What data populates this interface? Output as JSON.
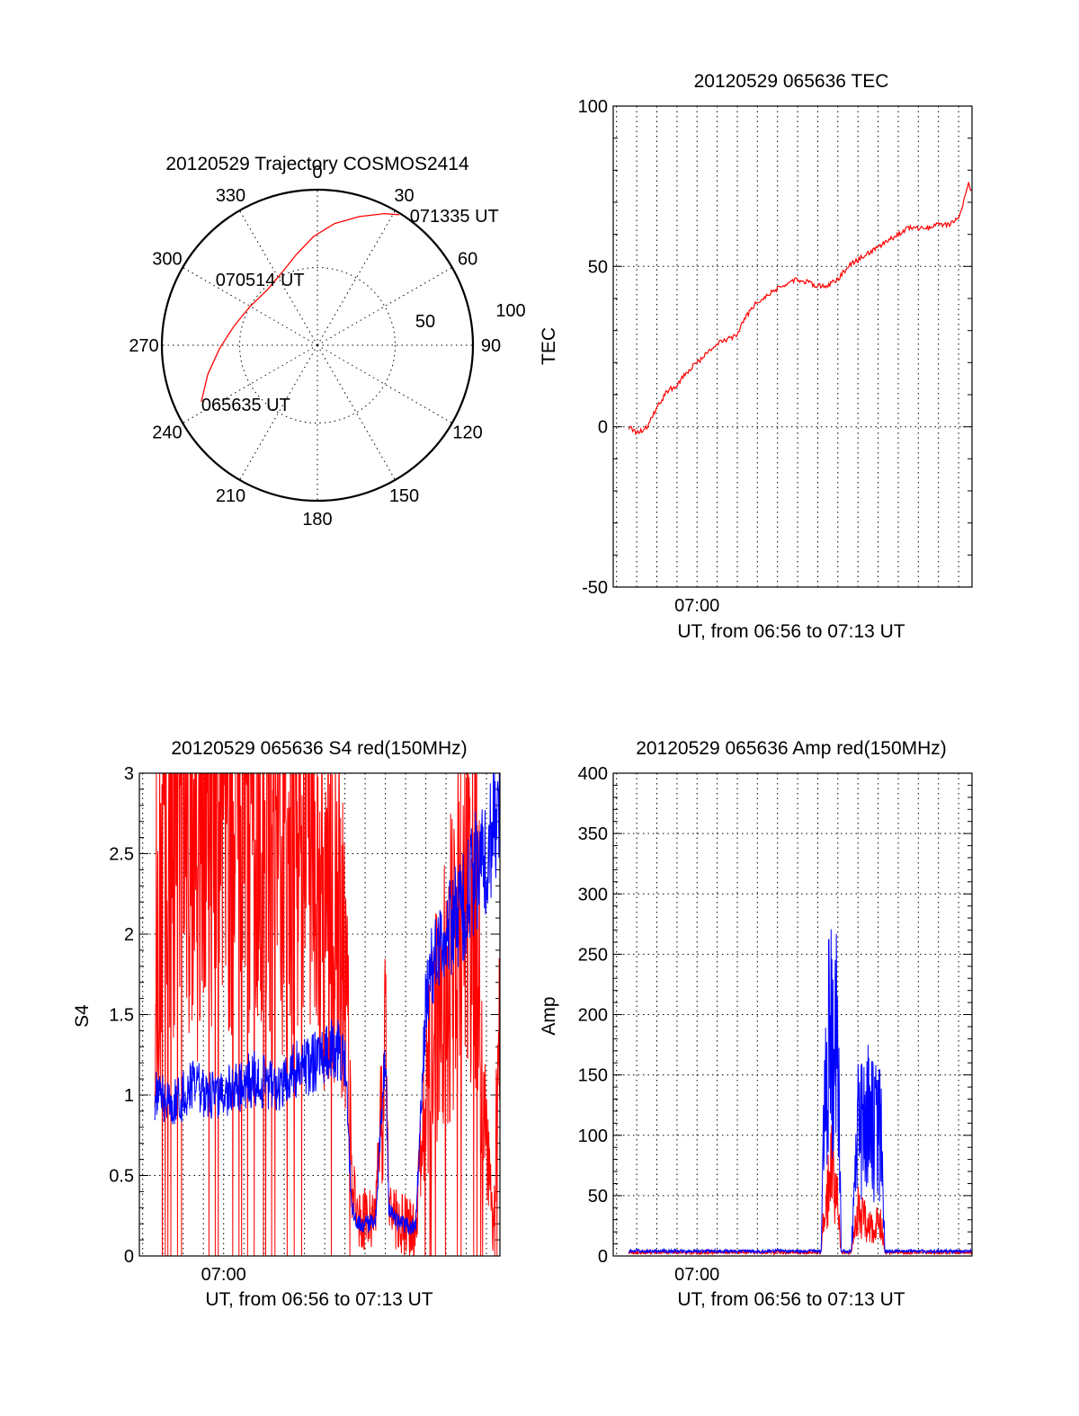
{
  "chart_data": [
    {
      "id": "trajectory",
      "type": "polar",
      "title": "20120529 Trajectory COSMOS2414",
      "azimuth_labels": [
        "0",
        "30",
        "60",
        "90",
        "120",
        "150",
        "180",
        "210",
        "240",
        "270",
        "300",
        "330"
      ],
      "radius_labels": [
        "50",
        "100"
      ],
      "rlim": [
        0,
        100
      ],
      "grid": true,
      "series": [
        {
          "color": "#ff0000",
          "points": [
            {
              "azimuth": 244,
              "elevation": 17
            },
            {
              "azimuth": 255,
              "elevation": 27
            },
            {
              "azimuth": 268,
              "elevation": 37
            },
            {
              "azimuth": 283,
              "elevation": 45
            },
            {
              "azimuth": 300,
              "elevation": 50
            },
            {
              "azimuth": 318,
              "elevation": 52
            },
            {
              "azimuth": 334,
              "elevation": 48
            },
            {
              "azimuth": 347,
              "elevation": 40
            },
            {
              "azimuth": 358,
              "elevation": 30
            },
            {
              "azimuth": 8,
              "elevation": 21
            },
            {
              "azimuth": 18,
              "elevation": 13
            },
            {
              "azimuth": 27,
              "elevation": 5
            },
            {
              "azimuth": 32,
              "elevation": 1
            }
          ]
        }
      ],
      "annotations": [
        {
          "text": "065635 UT",
          "azimuth": 244,
          "elevation": 17
        },
        {
          "text": "070514 UT",
          "azimuth": 322,
          "elevation": 50
        },
        {
          "text": "071335 UT",
          "azimuth": 32,
          "elevation": 1
        }
      ]
    },
    {
      "id": "tec",
      "type": "line",
      "title": "20120529 065636 TEC",
      "xlabel": "UT, from 06:56 to 07:13 UT",
      "ylabel": "TEC",
      "xlim": [
        "06:55:50",
        "07:13:40"
      ],
      "ylim": [
        -50,
        100
      ],
      "yticks": [
        "-50",
        "0",
        "50",
        "100"
      ],
      "xticks": [
        {
          "label": "07:00",
          "x": "07:00:00"
        }
      ],
      "grid": true,
      "series": [
        {
          "color": "#ff0000",
          "x": [
            "06:56:36",
            "06:57:00",
            "06:57:30",
            "06:58:00",
            "06:58:30",
            "06:59:00",
            "06:59:30",
            "07:00:00",
            "07:00:30",
            "07:01:00",
            "07:01:30",
            "07:02:00",
            "07:02:30",
            "07:03:00",
            "07:03:30",
            "07:04:00",
            "07:04:30",
            "07:05:00",
            "07:05:30",
            "07:06:00",
            "07:06:30",
            "07:07:00",
            "07:07:30",
            "07:08:00",
            "07:08:30",
            "07:09:00",
            "07:09:30",
            "07:10:00",
            "07:10:30",
            "07:11:00",
            "07:11:30",
            "07:12:00",
            "07:12:30",
            "07:13:00",
            "07:13:15",
            "07:13:30",
            "07:13:40"
          ],
          "y": [
            0,
            -2,
            0,
            6,
            11,
            13,
            17,
            20,
            23,
            26,
            27,
            29,
            35,
            39,
            41,
            43,
            45,
            46,
            45,
            44,
            44,
            46,
            50,
            52,
            54,
            56,
            58,
            60,
            62,
            62,
            62,
            63,
            63,
            65,
            70,
            76,
            73
          ]
        }
      ]
    },
    {
      "id": "s4",
      "type": "line",
      "title": "20120529 065636 S4 red(150MHz)",
      "xlabel": "UT, from 06:56 to 07:13 UT",
      "ylabel": "S4",
      "xlim": [
        "06:55:50",
        "07:13:40"
      ],
      "ylim": [
        0,
        3
      ],
      "yticks": [
        "0",
        "0.5",
        "1",
        "1.5",
        "2",
        "2.5",
        "3"
      ],
      "xticks": [
        {
          "label": "07:00",
          "x": "07:00:00"
        }
      ],
      "grid": true,
      "series": [
        {
          "color": "#ff0000",
          "x": [
            "06:56:36",
            "06:57:30",
            "06:58:30",
            "06:59:30",
            "07:00:30",
            "07:01:30",
            "07:02:30",
            "07:03:30",
            "07:04:30",
            "07:05:00",
            "07:06:00",
            "07:06:20",
            "07:06:40",
            "07:07:30",
            "07:08:00",
            "07:08:10",
            "07:08:40",
            "07:09:30",
            "07:10:00",
            "07:10:30",
            "07:11:00",
            "07:11:30",
            "07:12:00",
            "07:12:30",
            "07:12:50",
            "07:13:20",
            "07:13:40"
          ],
          "y": [
            2.0,
            3.0,
            2.5,
            3.0,
            2.6,
            3.0,
            2.4,
            2.8,
            2.5,
            2.2,
            2.0,
            0.5,
            0.25,
            0.2,
            1.3,
            0.3,
            0.2,
            0.18,
            1.0,
            1.4,
            1.6,
            2.0,
            2.2,
            2.3,
            1.0,
            0.2,
            1.5
          ]
        },
        {
          "color": "#0000ff",
          "x": [
            "06:56:36",
            "06:57:30",
            "06:58:30",
            "06:59:30",
            "07:00:30",
            "07:01:30",
            "07:02:30",
            "07:03:30",
            "07:04:30",
            "07:05:30",
            "07:06:00",
            "07:06:20",
            "07:06:40",
            "07:07:30",
            "07:08:00",
            "07:08:10",
            "07:08:40",
            "07:09:30",
            "07:10:00",
            "07:10:30",
            "07:11:00",
            "07:11:30",
            "07:12:00",
            "07:12:30",
            "07:13:00",
            "07:13:40"
          ],
          "y": [
            1.0,
            0.95,
            1.05,
            1.0,
            1.05,
            1.1,
            1.05,
            1.15,
            1.2,
            1.3,
            1.25,
            0.3,
            0.2,
            0.2,
            1.3,
            0.3,
            0.2,
            0.18,
            1.6,
            1.9,
            2.0,
            2.1,
            2.2,
            2.4,
            2.5,
            2.8
          ]
        }
      ]
    },
    {
      "id": "amp",
      "type": "line",
      "title": "20120529 065636 Amp red(150MHz)",
      "xlabel": "UT, from 06:56 to 07:13 UT",
      "ylabel": "Amp",
      "xlim": [
        "06:55:50",
        "07:13:40"
      ],
      "ylim": [
        0,
        400
      ],
      "yticks": [
        "0",
        "50",
        "100",
        "150",
        "200",
        "250",
        "300",
        "350",
        "400"
      ],
      "xticks": [
        {
          "label": "07:00",
          "x": "07:00:00"
        }
      ],
      "grid": true,
      "series": [
        {
          "color": "#ff0000",
          "x": [
            "06:56:36",
            "07:06:10",
            "07:06:20",
            "07:06:40",
            "07:07:00",
            "07:07:10",
            "07:07:40",
            "07:08:00",
            "07:08:30",
            "07:09:10",
            "07:09:20",
            "07:13:40"
          ],
          "y": [
            3,
            3,
            40,
            70,
            40,
            3,
            3,
            40,
            25,
            25,
            3,
            3
          ]
        },
        {
          "color": "#0000ff",
          "x": [
            "06:56:36",
            "07:06:10",
            "07:06:20",
            "07:06:40",
            "07:07:00",
            "07:07:10",
            "07:07:40",
            "07:08:00",
            "07:08:30",
            "07:09:10",
            "07:09:20",
            "07:13:40"
          ],
          "y": [
            4,
            4,
            120,
            200,
            160,
            4,
            4,
            100,
            110,
            100,
            4,
            4
          ]
        }
      ]
    }
  ]
}
